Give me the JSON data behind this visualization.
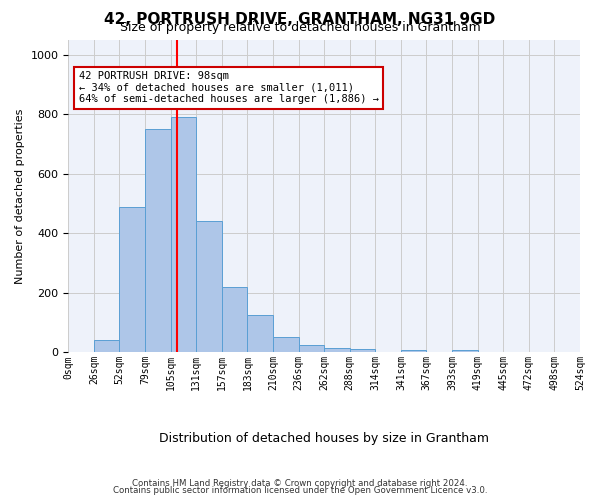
{
  "title": "42, PORTRUSH DRIVE, GRANTHAM, NG31 9GD",
  "subtitle": "Size of property relative to detached houses in Grantham",
  "xlabel": "Distribution of detached houses by size in Grantham",
  "ylabel": "Number of detached properties",
  "bar_values": [
    0,
    40,
    490,
    750,
    790,
    440,
    220,
    125,
    50,
    25,
    15,
    10,
    0,
    8,
    0,
    8,
    0,
    0,
    0,
    0
  ],
  "bin_labels": [
    "0sqm",
    "26sqm",
    "52sqm",
    "79sqm",
    "105sqm",
    "131sqm",
    "157sqm",
    "183sqm",
    "210sqm",
    "236sqm",
    "262sqm",
    "288sqm",
    "314sqm",
    "341sqm",
    "367sqm",
    "393sqm",
    "419sqm",
    "445sqm",
    "472sqm",
    "498sqm",
    "524sqm"
  ],
  "bar_color": "#aec6e8",
  "bar_edge_color": "#5a9fd4",
  "grid_color": "#cccccc",
  "annotation_text": "42 PORTRUSH DRIVE: 98sqm\n← 34% of detached houses are smaller (1,011)\n64% of semi-detached houses are larger (1,886) →",
  "annotation_box_color": "#ffffff",
  "annotation_box_edge_color": "#cc0000",
  "red_line_x": 3.75,
  "ylim": [
    0,
    1050
  ],
  "footer_line1": "Contains HM Land Registry data © Crown copyright and database right 2024.",
  "footer_line2": "Contains public sector information licensed under the Open Government Licence v3.0.",
  "background_color": "#eef2fa"
}
